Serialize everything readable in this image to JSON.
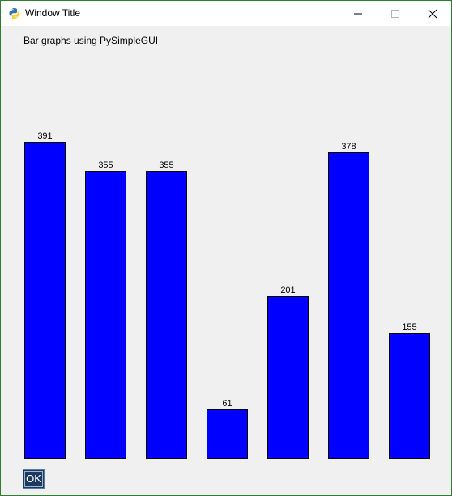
{
  "window": {
    "title": "Window Title"
  },
  "heading": "Bar graphs using PySimpleGUI",
  "chart_data": {
    "type": "bar",
    "values": [
      391,
      355,
      355,
      61,
      201,
      378,
      155
    ],
    "data_labels": [
      "391",
      "355",
      "355",
      "61",
      "201",
      "378",
      "155"
    ],
    "bar_color": "#0000ff",
    "ylim": [
      0,
      400
    ]
  },
  "ok_label": "OK"
}
